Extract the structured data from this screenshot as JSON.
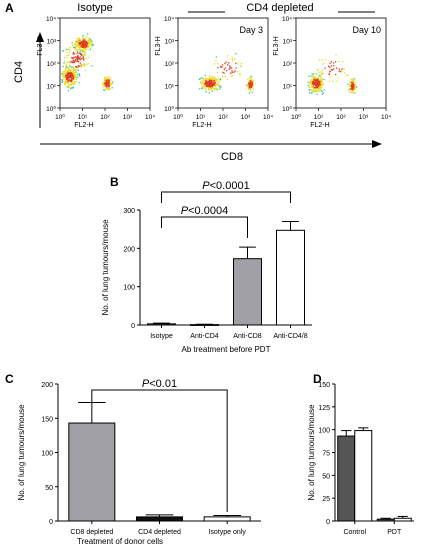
{
  "colors": {
    "gray_bar": "#a0a0a6",
    "black_bar": "#111111",
    "dark_bar": "#555555",
    "white_bar": "#ffffff",
    "flow_low": "#1e40c8",
    "flow_mid": "#32c8a0",
    "flow_high": "#e6dc28",
    "flow_peak": "#e03c1e"
  },
  "panel_a": {
    "letter": "A",
    "header_isotype": "Isotype",
    "header_cd4_depleted": "CD4 depleted",
    "y_arrow_label": "CD4",
    "x_arrow_label": "CD8",
    "plots": [
      {
        "label": "",
        "ylabel": "FL3-H",
        "xlabel": "FL2-H"
      },
      {
        "label": "Day 3",
        "ylabel": "FL3-H",
        "xlabel": "FL2-H"
      },
      {
        "label": "Day 10",
        "ylabel": "FL3-H",
        "xlabel": "FL2-H"
      }
    ],
    "y_ticks": [
      "10⁰",
      "10¹",
      "10²",
      "10³",
      "10⁴"
    ],
    "x_ticks": [
      "10⁰",
      "10¹",
      "10²",
      "10³",
      "10⁴"
    ]
  },
  "chart_data": [
    {
      "panel": "B",
      "type": "bar",
      "categories": [
        "Isotype",
        "Anti-CD4",
        "Anti-CD8",
        "Anti-CD4/8"
      ],
      "values": [
        3,
        1,
        173,
        247
      ],
      "errors": [
        2,
        1,
        30,
        23
      ],
      "fills": [
        "gray",
        "gray",
        "gray",
        "white"
      ],
      "ylabel": "No. of lung tumours/mouse",
      "xlabel": "Ab treatment before PDT",
      "ylim": [
        0,
        300
      ],
      "yticks": [
        "0",
        "100",
        "200",
        "300"
      ],
      "annotations": [
        {
          "p": "P",
          "text": "<0.0004",
          "from": "Isotype",
          "to": "Anti-CD8"
        },
        {
          "p": "P",
          "text": "<0.0001",
          "from": "Isotype",
          "to": "Anti-CD4/8"
        }
      ]
    },
    {
      "panel": "C",
      "type": "bar",
      "categories": [
        "CD8 depleted",
        "CD4 depleted",
        "Isotype only"
      ],
      "values": [
        143,
        6,
        6
      ],
      "errors": [
        30,
        3,
        2
      ],
      "fills": [
        "gray",
        "black",
        "white"
      ],
      "ylabel": "No. of lung tumours/mouse",
      "xlabel": "Treatment of donor cells",
      "ylim": [
        0,
        200
      ],
      "yticks": [
        "0",
        "50",
        "100",
        "150",
        "200"
      ],
      "annotations": [
        {
          "p": "P",
          "text": "<0.01",
          "from": "CD8 depleted",
          "to": "Isotype only"
        }
      ]
    },
    {
      "panel": "D",
      "type": "bar",
      "categories": [
        "Control",
        "PDT"
      ],
      "series": [
        {
          "fill": "dark",
          "values": [
            93,
            2
          ],
          "errors": [
            6,
            1
          ]
        },
        {
          "fill": "white",
          "values": [
            99,
            3
          ],
          "errors": [
            3,
            2
          ]
        }
      ],
      "ylabel": "No. of lung tumours/mouse",
      "ylim": [
        0,
        150
      ],
      "yticks": [
        "0",
        "25",
        "50",
        "75",
        "100",
        "125",
        "150"
      ]
    }
  ]
}
